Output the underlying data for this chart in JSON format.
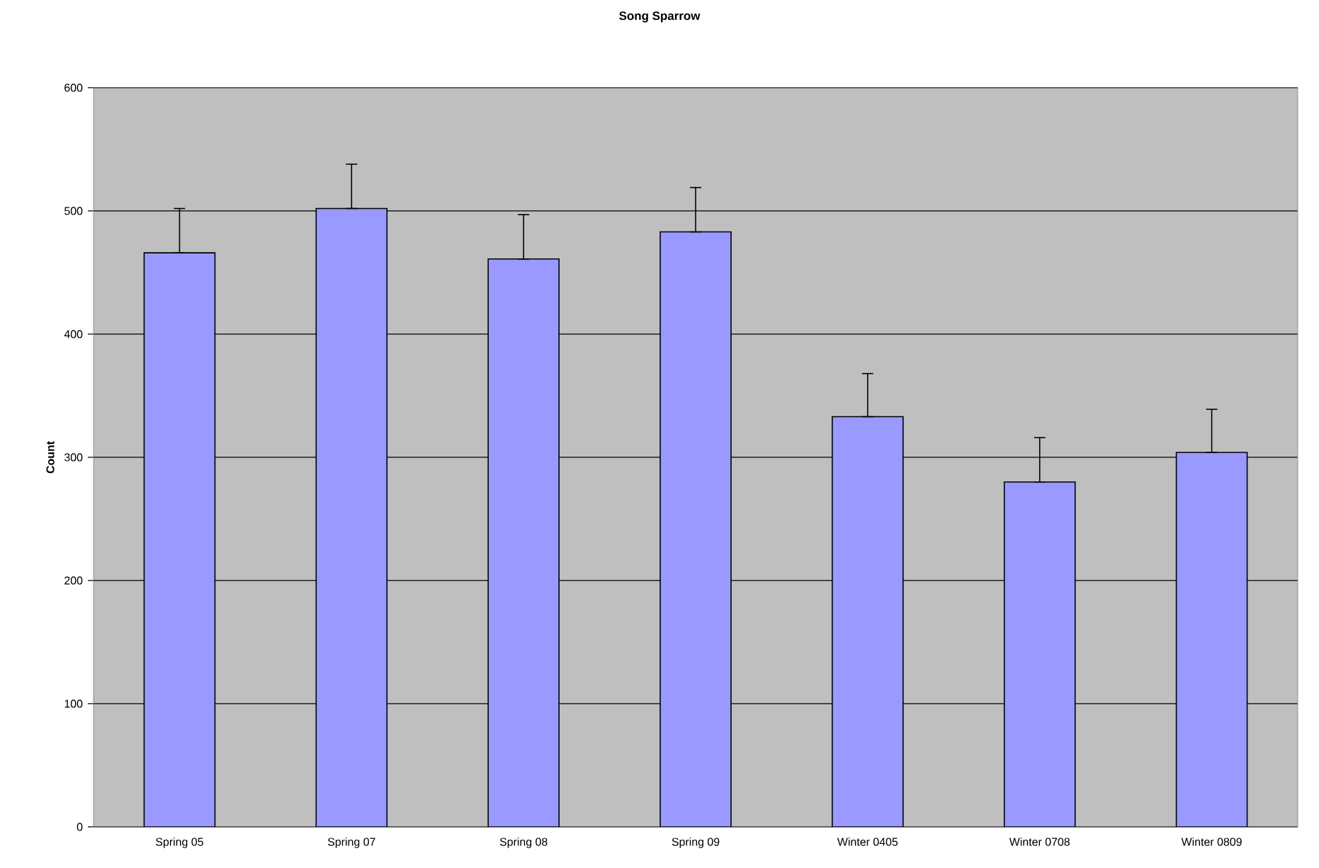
{
  "chart_data": {
    "type": "bar",
    "title": "Song Sparrow",
    "ylabel": "Count",
    "categories": [
      "Spring 05",
      "Spring 07",
      "Spring 08",
      "Spring 09",
      "Winter 0405",
      "Winter 0708",
      "Winter 0809"
    ],
    "values": [
      466,
      502,
      461,
      483,
      333,
      280,
      304
    ],
    "errors": [
      [
        466,
        502
      ],
      [
        502,
        538
      ],
      [
        461,
        497
      ],
      [
        483,
        519
      ],
      [
        333,
        368
      ],
      [
        280,
        316
      ],
      [
        304,
        339
      ]
    ],
    "color": "#9999ff",
    "ylim": [
      0,
      600
    ],
    "yticks": [
      0,
      100,
      200,
      300,
      400,
      500,
      600
    ],
    "grid": "y"
  }
}
